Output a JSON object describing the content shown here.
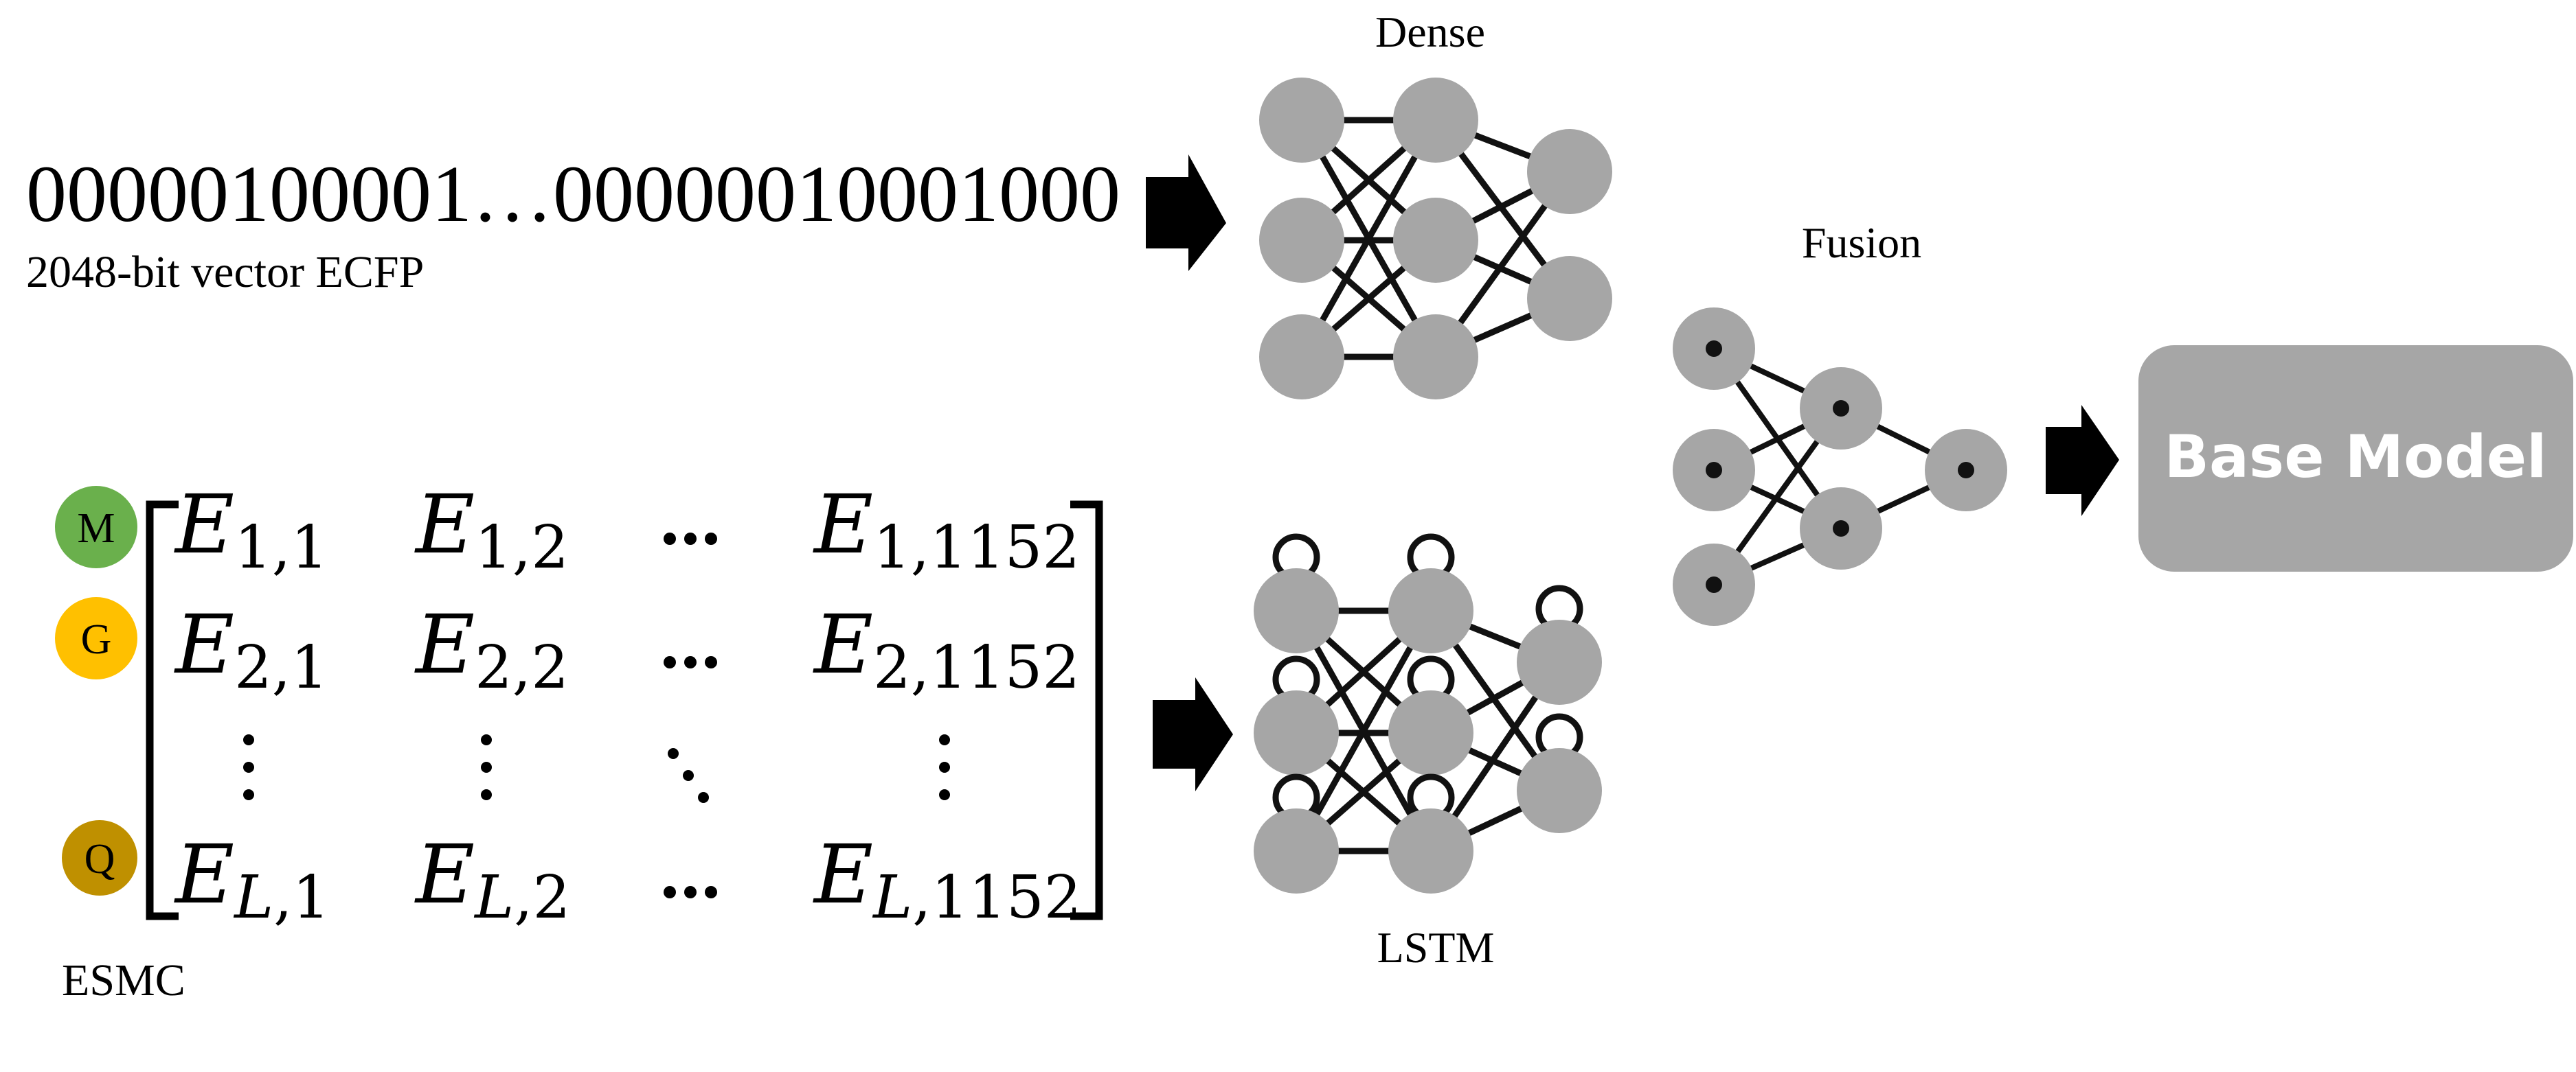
{
  "ecfp": {
    "bits": "00000100001…00000010001000",
    "caption": "2048-bit vector ECFP"
  },
  "dense": {
    "label": "Dense"
  },
  "lstm": {
    "label": "LSTM"
  },
  "fusion": {
    "label": "Fusion"
  },
  "output": {
    "label": "Base Model",
    "color": "#a6a6a6"
  },
  "esmc": {
    "label": "ESMC",
    "tokens": [
      {
        "letter": "M",
        "color": "#6ab04c"
      },
      {
        "letter": "G",
        "color": "#ffc000"
      },
      {
        "letter": "Q",
        "color": "#bf9000"
      }
    ],
    "matrix": {
      "rows": [
        {
          "r": "1",
          "cols": [
            "1",
            "2",
            "1152"
          ]
        },
        {
          "r": "2",
          "cols": [
            "1",
            "2",
            "1152"
          ]
        },
        {
          "r": "L",
          "cols": [
            "1",
            "2",
            "1152"
          ]
        }
      ]
    }
  },
  "colors": {
    "node": "#a6a6a6",
    "line": "#111111"
  }
}
